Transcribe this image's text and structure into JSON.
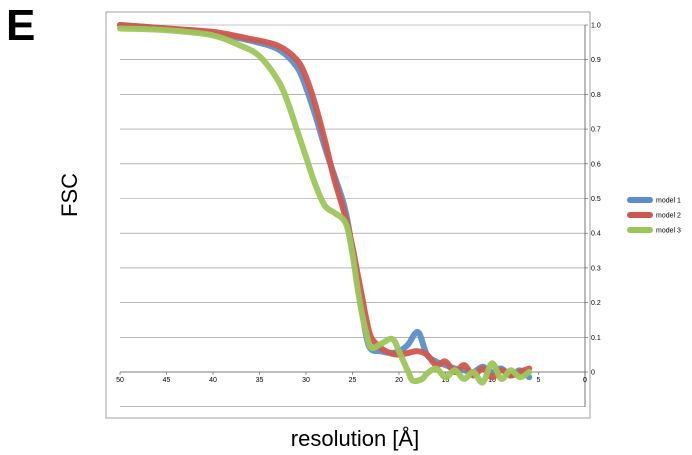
{
  "panel_label": "E",
  "chart_data": {
    "type": "line",
    "title": "",
    "xlabel": "resolution [Å]",
    "ylabel": "FSC",
    "x_reversed": true,
    "xlim": [
      50,
      0
    ],
    "ylim": [
      0,
      1
    ],
    "xticks": [
      50,
      45,
      40,
      35,
      30,
      25,
      20,
      15,
      10,
      5,
      0
    ],
    "yticks": [
      0,
      0.1,
      0.2,
      0.3,
      0.4,
      0.5,
      0.6,
      0.7,
      0.8,
      0.9,
      1.0
    ],
    "ytick_labels": [
      "0",
      "0.1",
      "0.2",
      "0.3",
      "0.4",
      "0.5",
      "0.6",
      "0.7",
      "0.8",
      "0.9",
      "1.0"
    ],
    "grid": true,
    "legend_position": "right",
    "series": [
      {
        "name": "model 1",
        "color": "#5b8fc9",
        "points": [
          [
            50,
            1.0
          ],
          [
            45,
            0.99
          ],
          [
            40,
            0.975
          ],
          [
            36,
            0.955
          ],
          [
            33,
            0.93
          ],
          [
            31,
            0.88
          ],
          [
            30,
            0.82
          ],
          [
            29,
            0.74
          ],
          [
            28,
            0.65
          ],
          [
            27,
            0.57
          ],
          [
            26,
            0.49
          ],
          [
            25.5,
            0.43
          ],
          [
            25,
            0.35
          ],
          [
            24.5,
            0.27
          ],
          [
            24,
            0.18
          ],
          [
            23.5,
            0.1
          ],
          [
            23,
            0.065
          ],
          [
            22,
            0.06
          ],
          [
            21,
            0.055
          ],
          [
            20,
            0.06
          ],
          [
            19,
            0.08
          ],
          [
            18.3,
            0.11
          ],
          [
            17.8,
            0.11
          ],
          [
            17,
            0.05
          ],
          [
            16,
            0.03
          ],
          [
            15,
            0.02
          ],
          [
            14,
            0.01
          ],
          [
            13,
            0.005
          ],
          [
            12,
            0.0
          ],
          [
            11,
            0.015
          ],
          [
            10,
            0.0
          ],
          [
            9,
            0.01
          ],
          [
            8,
            -0.01
          ],
          [
            7,
            0.005
          ],
          [
            6,
            -0.015
          ]
        ]
      },
      {
        "name": "model 2",
        "color": "#d0574e",
        "points": [
          [
            50,
            1.0
          ],
          [
            45,
            0.99
          ],
          [
            40,
            0.98
          ],
          [
            36,
            0.96
          ],
          [
            33,
            0.94
          ],
          [
            31,
            0.9
          ],
          [
            30,
            0.85
          ],
          [
            29,
            0.77
          ],
          [
            28,
            0.67
          ],
          [
            27,
            0.56
          ],
          [
            26,
            0.47
          ],
          [
            25.5,
            0.42
          ],
          [
            25,
            0.36
          ],
          [
            24.5,
            0.29
          ],
          [
            24,
            0.22
          ],
          [
            23.5,
            0.15
          ],
          [
            23,
            0.1
          ],
          [
            22,
            0.07
          ],
          [
            21,
            0.055
          ],
          [
            20,
            0.05
          ],
          [
            19,
            0.055
          ],
          [
            18,
            0.06
          ],
          [
            17,
            0.05
          ],
          [
            16,
            0.02
          ],
          [
            15,
            0.03
          ],
          [
            14,
            0.0
          ],
          [
            13,
            0.02
          ],
          [
            12,
            -0.01
          ],
          [
            11,
            0.01
          ],
          [
            10,
            -0.015
          ],
          [
            9,
            0.005
          ],
          [
            8,
            -0.01
          ],
          [
            7,
            0.0
          ],
          [
            6,
            0.01
          ]
        ]
      },
      {
        "name": "model 3",
        "color": "#9dc65a",
        "points": [
          [
            50,
            0.99
          ],
          [
            45,
            0.985
          ],
          [
            40,
            0.97
          ],
          [
            37,
            0.94
          ],
          [
            35,
            0.91
          ],
          [
            33,
            0.84
          ],
          [
            32,
            0.78
          ],
          [
            31,
            0.7
          ],
          [
            30,
            0.62
          ],
          [
            29,
            0.54
          ],
          [
            28,
            0.48
          ],
          [
            27,
            0.46
          ],
          [
            26,
            0.44
          ],
          [
            25.5,
            0.41
          ],
          [
            25,
            0.34
          ],
          [
            24.5,
            0.25
          ],
          [
            24,
            0.17
          ],
          [
            23.5,
            0.11
          ],
          [
            23,
            0.07
          ],
          [
            22,
            0.08
          ],
          [
            21,
            0.095
          ],
          [
            20.5,
            0.09
          ],
          [
            20,
            0.06
          ],
          [
            19,
            0.0
          ],
          [
            18.5,
            -0.025
          ],
          [
            17.5,
            -0.02
          ],
          [
            17,
            -0.005
          ],
          [
            16,
            0.01
          ],
          [
            15,
            -0.015
          ],
          [
            14,
            0.005
          ],
          [
            13,
            -0.02
          ],
          [
            12,
            0.0
          ],
          [
            11,
            -0.03
          ],
          [
            10,
            0.025
          ],
          [
            9,
            -0.02
          ],
          [
            8,
            0.005
          ],
          [
            7,
            -0.015
          ],
          [
            6,
            0.0
          ]
        ]
      }
    ]
  }
}
